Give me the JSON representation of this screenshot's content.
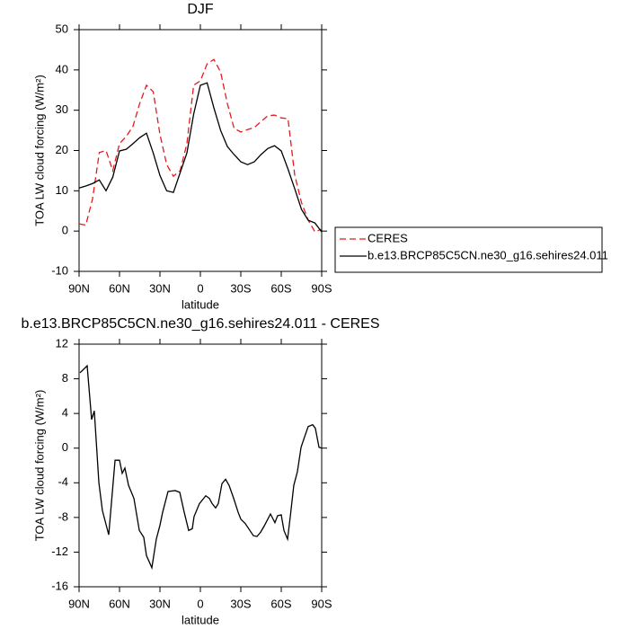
{
  "chart_data": [
    {
      "type": "line",
      "title": "DJF",
      "xlabel": "latitude",
      "ylabel": "TOA LW cloud forcing (W/m²)",
      "x": [
        90,
        85,
        80,
        75,
        70,
        65,
        60,
        55,
        50,
        45,
        40,
        35,
        30,
        25,
        20,
        15,
        10,
        5,
        0,
        -5,
        -10,
        -15,
        -20,
        -25,
        -30,
        -35,
        -40,
        -45,
        -50,
        -55,
        -60,
        -65,
        -70,
        -75,
        -80,
        -85,
        -90
      ],
      "series": [
        {
          "name": "CERES",
          "color": "#e41a1c",
          "style": "dashed",
          "values": [
            1.8,
            1.5,
            8,
            19.5,
            20,
            15,
            21.7,
            23.5,
            26,
            31.7,
            36.2,
            34.6,
            24,
            16.5,
            13.6,
            15,
            21.7,
            36.2,
            37.3,
            41.5,
            42.6,
            39.5,
            31.7,
            25.5,
            24.6,
            25.2,
            25.7,
            27.2,
            28.6,
            28.8,
            28.1,
            27.9,
            13.9,
            7.1,
            2.7,
            -0.2,
            0.5
          ]
        },
        {
          "name": "b.e13.BRCP85C5CN.ne30_g16.sehires24.011",
          "color": "#000000",
          "style": "solid",
          "values": [
            10.7,
            11.2,
            11.8,
            12.7,
            10,
            13.4,
            19.9,
            20.3,
            21.7,
            23.2,
            24.3,
            19.4,
            13.8,
            10,
            9.6,
            14.5,
            19.4,
            29,
            36.2,
            36.8,
            30.6,
            25,
            21,
            19,
            17.2,
            16.5,
            17.2,
            19,
            20.5,
            21.2,
            19.9,
            15.4,
            10.5,
            5.4,
            2.7,
            2.0,
            -0.2
          ]
        }
      ],
      "xlim": [
        90,
        -90
      ],
      "xticks": [
        {
          "value": 90,
          "label": "90N"
        },
        {
          "value": 60,
          "label": "60N"
        },
        {
          "value": 30,
          "label": "30N"
        },
        0,
        {
          "value": -30,
          "label": "30S"
        },
        {
          "value": -60,
          "label": "60S"
        },
        {
          "value": -90,
          "label": "90S"
        }
      ],
      "ylim": [
        -10,
        50
      ],
      "yticks": [
        -10,
        0,
        10,
        20,
        30,
        40,
        50
      ]
    },
    {
      "type": "line",
      "title": "b.e13.BRCP85C5CN.ne30_g16.sehires24.011 - CERES",
      "xlabel": "latitude",
      "ylabel": "TOA LW cloud forcing (W/m²)",
      "x": [
        89.3,
        84,
        80.7,
        78.7,
        75.3,
        72.7,
        68,
        63.3,
        60,
        58,
        56,
        53.3,
        49.3,
        45.3,
        42,
        40,
        36,
        32.7,
        30,
        28,
        24,
        18.7,
        15.3,
        12,
        8.7,
        6,
        4.7,
        0.7,
        -4,
        -6.7,
        -8.7,
        -11.3,
        -13.3,
        -16,
        -18.7,
        -21.3,
        -24.7,
        -28,
        -30,
        -33.3,
        -36.7,
        -39.3,
        -42,
        -44.7,
        -47.3,
        -50,
        -52,
        -55.3,
        -57.3,
        -60,
        -62,
        -64.7,
        -66.7,
        -69.3,
        -72,
        -74.7,
        -77.3,
        -80,
        -83.3,
        -85.3,
        -88,
        -90
      ],
      "color": "#000000",
      "values": [
        8.7,
        9.5,
        3.3,
        4.3,
        -4,
        -7.2,
        -10,
        -1.4,
        -1.4,
        -2.9,
        -2.3,
        -4.3,
        -5.8,
        -9.5,
        -10.3,
        -12.4,
        -13.8,
        -10.5,
        -8.9,
        -7.4,
        -5,
        -4.9,
        -5.1,
        -7.4,
        -9.5,
        -9.3,
        -7.9,
        -6.4,
        -5.5,
        -5.8,
        -6.4,
        -6.9,
        -6.4,
        -4.1,
        -3.6,
        -4.3,
        -5.8,
        -7.4,
        -8.2,
        -8.7,
        -9.5,
        -10.1,
        -10.2,
        -9.7,
        -9,
        -8.2,
        -7.6,
        -8.6,
        -7.8,
        -7.7,
        -9.5,
        -10.5,
        -7.9,
        -4.3,
        -2.7,
        0.1,
        1.3,
        2.5,
        2.7,
        2.3,
        0.1,
        0
      ],
      "xlim": [
        90,
        -90
      ],
      "xticks": [
        {
          "value": 90,
          "label": "90N"
        },
        {
          "value": 60,
          "label": "60N"
        },
        {
          "value": 30,
          "label": "30N"
        },
        0,
        {
          "value": -30,
          "label": "30S"
        },
        {
          "value": -60,
          "label": "60S"
        },
        {
          "value": -90,
          "label": "90S"
        }
      ],
      "ylim": [
        -16,
        12
      ],
      "yticks": [
        -16,
        -12,
        -8,
        -4,
        0,
        4,
        8,
        12
      ]
    }
  ]
}
